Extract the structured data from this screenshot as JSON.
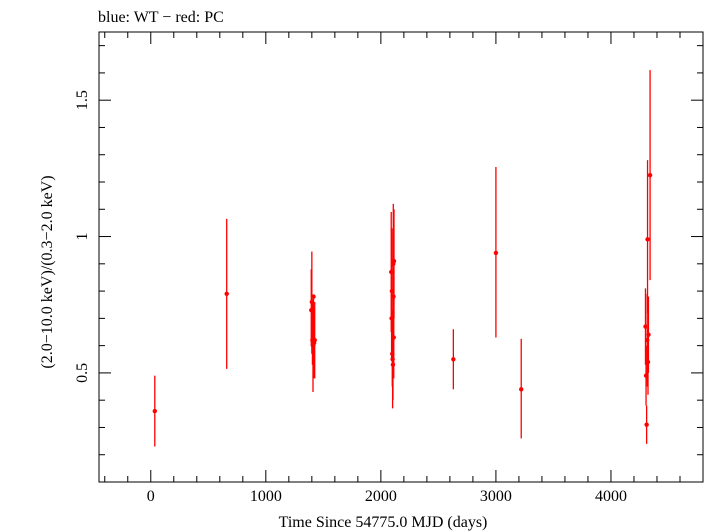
{
  "chart_data": {
    "type": "scatter",
    "title": "blue: WT − red: PC",
    "xlabel": "Time Since 54775.0 MJD (days)",
    "ylabel": "(2.0−10.0 keV)/(0.3−2.0 keV)",
    "xlim": [
      -450,
      4800
    ],
    "ylim": [
      0.1,
      1.75
    ],
    "xticks": [
      0,
      1000,
      2000,
      3000,
      4000
    ],
    "xtick_labels": [
      "0",
      "1000",
      "2000",
      "3000",
      "4000"
    ],
    "yticks": [
      0.5,
      1.0,
      1.5
    ],
    "ytick_labels": [
      "0.5",
      "1",
      "1.5"
    ],
    "grid": false,
    "legend": "none",
    "series": [
      {
        "color": "#ff0000",
        "points": [
          {
            "x": 35,
            "y": 0.36,
            "ylo": 0.23,
            "yhi": 0.49
          },
          {
            "x": 660,
            "y": 0.79,
            "ylo": 0.515,
            "yhi": 1.065
          },
          {
            "x": 1395,
            "y": 0.73,
            "ylo": 0.6,
            "yhi": 0.88
          },
          {
            "x": 1400,
            "y": 0.76,
            "ylo": 0.57,
            "yhi": 0.945
          },
          {
            "x": 1405,
            "y": 0.62,
            "ylo": 0.53,
            "yhi": 0.71
          },
          {
            "x": 1410,
            "y": 0.6,
            "ylo": 0.43,
            "yhi": 0.77
          },
          {
            "x": 1415,
            "y": 0.78,
            "ylo": 0.63,
            "yhi": 0.78
          },
          {
            "x": 1420,
            "y": 0.61,
            "ylo": 0.48,
            "yhi": 0.74
          },
          {
            "x": 1425,
            "y": 0.62,
            "ylo": 0.48,
            "yhi": 0.76
          },
          {
            "x": 2090,
            "y": 0.87,
            "ylo": 0.65,
            "yhi": 1.09
          },
          {
            "x": 2093,
            "y": 0.7,
            "ylo": 0.55,
            "yhi": 0.85
          },
          {
            "x": 2096,
            "y": 0.8,
            "ylo": 0.56,
            "yhi": 1.03
          },
          {
            "x": 2099,
            "y": 0.57,
            "ylo": 0.45,
            "yhi": 0.69
          },
          {
            "x": 2102,
            "y": 0.55,
            "ylo": 0.37,
            "yhi": 0.73
          },
          {
            "x": 2105,
            "y": 0.53,
            "ylo": 0.4,
            "yhi": 0.66
          },
          {
            "x": 2108,
            "y": 0.9,
            "ylo": 0.68,
            "yhi": 1.12
          },
          {
            "x": 2110,
            "y": 0.78,
            "ylo": 0.55,
            "yhi": 1.01
          },
          {
            "x": 2112,
            "y": 0.63,
            "ylo": 0.48,
            "yhi": 0.78
          },
          {
            "x": 2114,
            "y": 0.91,
            "ylo": 0.7,
            "yhi": 1.1
          },
          {
            "x": 2630,
            "y": 0.55,
            "ylo": 0.44,
            "yhi": 0.66
          },
          {
            "x": 3000,
            "y": 0.94,
            "ylo": 0.63,
            "yhi": 1.255
          },
          {
            "x": 3220,
            "y": 0.44,
            "ylo": 0.26,
            "yhi": 0.625
          },
          {
            "x": 4300,
            "y": 0.67,
            "ylo": 0.53,
            "yhi": 0.81
          },
          {
            "x": 4305,
            "y": 0.49,
            "ylo": 0.38,
            "yhi": 0.6
          },
          {
            "x": 4310,
            "y": 0.31,
            "ylo": 0.24,
            "yhi": 0.38
          },
          {
            "x": 4315,
            "y": 0.62,
            "ylo": 0.45,
            "yhi": 0.79
          },
          {
            "x": 4318,
            "y": 0.99,
            "ylo": 0.72,
            "yhi": 1.28
          },
          {
            "x": 4322,
            "y": 0.54,
            "ylo": 0.42,
            "yhi": 0.66
          },
          {
            "x": 4326,
            "y": 0.64,
            "ylo": 0.5,
            "yhi": 0.78
          },
          {
            "x": 4340,
            "y": 1.225,
            "ylo": 0.84,
            "yhi": 1.61
          }
        ]
      }
    ]
  }
}
